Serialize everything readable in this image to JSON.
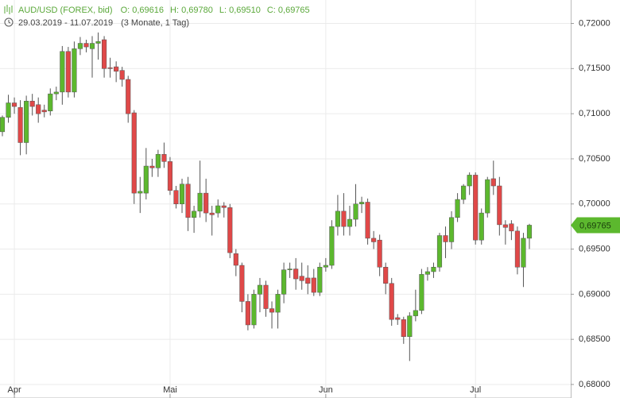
{
  "chart_data": {
    "type": "candlestick",
    "symbol": "AUD/USD (FOREX, bid)",
    "ohlc_labels": [
      "O: 0,69616",
      "H: 0,69780",
      "L: 0,69510",
      "C: 0,69765"
    ],
    "date_range": "29.03.2019 - 11.07.2019",
    "period": "(3 Monate, 1 Tag)",
    "up_color": "#5cb82e",
    "down_color": "#e04848",
    "wick_color": "#555555",
    "grid": true,
    "categories": [
      null,
      null,
      null,
      null,
      null,
      null,
      null,
      null,
      null,
      null,
      null,
      null,
      null,
      null,
      null,
      null,
      null,
      null,
      null,
      null,
      null,
      null,
      null,
      null,
      null,
      null,
      null,
      null,
      null,
      null,
      null,
      null,
      null,
      null,
      null,
      null,
      null,
      null,
      null,
      null,
      null,
      null,
      null,
      null,
      null,
      null,
      null,
      null,
      null,
      null,
      null,
      null,
      null,
      null,
      null,
      null,
      null,
      null,
      null,
      null,
      null,
      null,
      null,
      null,
      null,
      null,
      null,
      null,
      null,
      null,
      null,
      null,
      null,
      null,
      null,
      null,
      null,
      null,
      null,
      null,
      null,
      null,
      null,
      null,
      null,
      null,
      null,
      null,
      null
    ],
    "open": [
      0.708,
      0.7096,
      0.7112,
      0.7107,
      0.7068,
      0.7114,
      0.711,
      0.7104,
      0.7103,
      0.7122,
      0.7124,
      0.7169,
      0.7124,
      0.7172,
      0.7178,
      0.7172,
      0.7178,
      0.7182,
      0.7151,
      0.7152,
      0.7148,
      0.7138,
      0.7101,
      0.7012,
      0.7012,
      0.7042,
      0.704,
      0.7055,
      0.7047,
      0.7015,
      0.7,
      0.7022,
      0.6985,
      0.6992,
      0.7012,
      0.699,
      0.699,
      0.6998,
      0.6996,
      0.6945,
      0.6932,
      0.6892,
      0.6866,
      0.69,
      0.691,
      0.6884,
      0.688,
      0.69,
      0.6927,
      0.6928,
      0.692,
      0.6918,
      0.6918,
      0.6902,
      0.693,
      0.6932,
      0.6975,
      0.6992,
      0.6975,
      0.6983,
      0.7,
      0.7002,
      0.6962,
      0.696,
      0.693,
      0.6912,
      0.6874,
      0.6872,
      0.6853,
      0.6876,
      0.6882,
      0.6922,
      0.6925,
      0.693,
      0.6965,
      0.6958,
      0.6985,
      0.7005,
      0.702,
      0.7032,
      0.696,
      0.699,
      0.7028,
      0.702,
      0.6977,
      0.6978,
      0.697,
      0.693,
      0.6962
    ],
    "high": [
      0.7098,
      0.7121,
      0.7118,
      0.7115,
      0.712,
      0.7122,
      0.7118,
      0.711,
      0.7128,
      0.713,
      0.7175,
      0.7174,
      0.718,
      0.7185,
      0.7182,
      0.7186,
      0.719,
      0.7186,
      0.7162,
      0.7158,
      0.7152,
      0.7142,
      0.7104,
      0.703,
      0.7062,
      0.705,
      0.706,
      0.7068,
      0.7052,
      0.702,
      0.7028,
      0.703,
      0.6998,
      0.7048,
      0.7028,
      0.6998,
      0.7005,
      0.7002,
      0.7,
      0.695,
      0.6935,
      0.69,
      0.6905,
      0.6918,
      0.6915,
      0.6892,
      0.6905,
      0.6935,
      0.6935,
      0.694,
      0.6935,
      0.6932,
      0.6928,
      0.6935,
      0.694,
      0.6982,
      0.701,
      0.7012,
      0.6998,
      0.7022,
      0.7008,
      0.7006,
      0.697,
      0.6966,
      0.6935,
      0.6918,
      0.6878,
      0.6875,
      0.688,
      0.6905,
      0.6928,
      0.693,
      0.6935,
      0.6968,
      0.6975,
      0.6992,
      0.7012,
      0.7022,
      0.7035,
      0.7035,
      0.6995,
      0.703,
      0.7048,
      0.703,
      0.6982,
      0.6982,
      0.6975,
      0.6968,
      0.6978
    ],
    "low": [
      0.7075,
      0.709,
      0.71,
      0.7054,
      0.7055,
      0.7098,
      0.709,
      0.7096,
      0.7098,
      0.7115,
      0.711,
      0.7118,
      0.7118,
      0.7165,
      0.7168,
      0.714,
      0.716,
      0.714,
      0.714,
      0.7135,
      0.713,
      0.709,
      0.7,
      0.699,
      0.7005,
      0.703,
      0.703,
      0.704,
      0.701,
      0.6995,
      0.699,
      0.697,
      0.6968,
      0.6985,
      0.698,
      0.6965,
      0.6985,
      0.6985,
      0.694,
      0.692,
      0.688,
      0.686,
      0.6862,
      0.688,
      0.6875,
      0.6862,
      0.6862,
      0.689,
      0.6918,
      0.6905,
      0.6905,
      0.69,
      0.6898,
      0.6898,
      0.6925,
      0.6928,
      0.6965,
      0.6965,
      0.6965,
      0.6975,
      0.699,
      0.6955,
      0.695,
      0.692,
      0.69,
      0.6865,
      0.6866,
      0.6845,
      0.6826,
      0.687,
      0.6878,
      0.6915,
      0.6918,
      0.6925,
      0.694,
      0.695,
      0.698,
      0.7,
      0.701,
      0.6955,
      0.6955,
      0.6985,
      0.701,
      0.6965,
      0.6955,
      0.696,
      0.6922,
      0.6908,
      0.695
    ],
    "close": [
      0.7096,
      0.7112,
      0.7108,
      0.7068,
      0.7114,
      0.7108,
      0.71,
      0.7102,
      0.7122,
      0.7124,
      0.7169,
      0.7124,
      0.7172,
      0.7178,
      0.7174,
      0.7178,
      0.718,
      0.715,
      0.715,
      0.7147,
      0.7138,
      0.71,
      0.7012,
      0.7014,
      0.7042,
      0.704,
      0.7055,
      0.7047,
      0.7015,
      0.7,
      0.7022,
      0.6985,
      0.6992,
      0.7012,
      0.699,
      0.6988,
      0.6998,
      0.6996,
      0.6946,
      0.6932,
      0.6892,
      0.6866,
      0.69,
      0.691,
      0.6884,
      0.688,
      0.69,
      0.6927,
      0.6928,
      0.6917,
      0.6915,
      0.6912,
      0.6902,
      0.693,
      0.6932,
      0.6975,
      0.6992,
      0.6975,
      0.6983,
      0.7,
      0.7002,
      0.6962,
      0.6958,
      0.693,
      0.6912,
      0.6872,
      0.6872,
      0.6853,
      0.6876,
      0.6882,
      0.6922,
      0.6925,
      0.693,
      0.6965,
      0.6958,
      0.6985,
      0.7005,
      0.702,
      0.7032,
      0.696,
      0.699,
      0.7027,
      0.702,
      0.6977,
      0.6974,
      0.697,
      0.693,
      0.6962,
      0.69765
    ],
    "xticks": [
      {
        "value": 2,
        "label": "Apr"
      },
      {
        "value": 28,
        "label": "Mai"
      },
      {
        "value": 54,
        "label": "Jun"
      },
      {
        "value": 79,
        "label": "Jul"
      }
    ],
    "ylim": [
      0.6785,
      0.7226
    ],
    "yticks": [
      {
        "value": 0.68,
        "label": "0,68000"
      },
      {
        "value": 0.685,
        "label": "0,68500"
      },
      {
        "value": 0.69,
        "label": "0,69000"
      },
      {
        "value": 0.695,
        "label": "0,69500"
      },
      {
        "value": 0.7,
        "label": "0,70000"
      },
      {
        "value": 0.705,
        "label": "0,70500"
      },
      {
        "value": 0.71,
        "label": "0,71000"
      },
      {
        "value": 0.715,
        "label": "0,71500"
      },
      {
        "value": 0.72,
        "label": "0,72000"
      }
    ],
    "last_price": {
      "value": 0.69765,
      "label": "0,69765"
    }
  }
}
